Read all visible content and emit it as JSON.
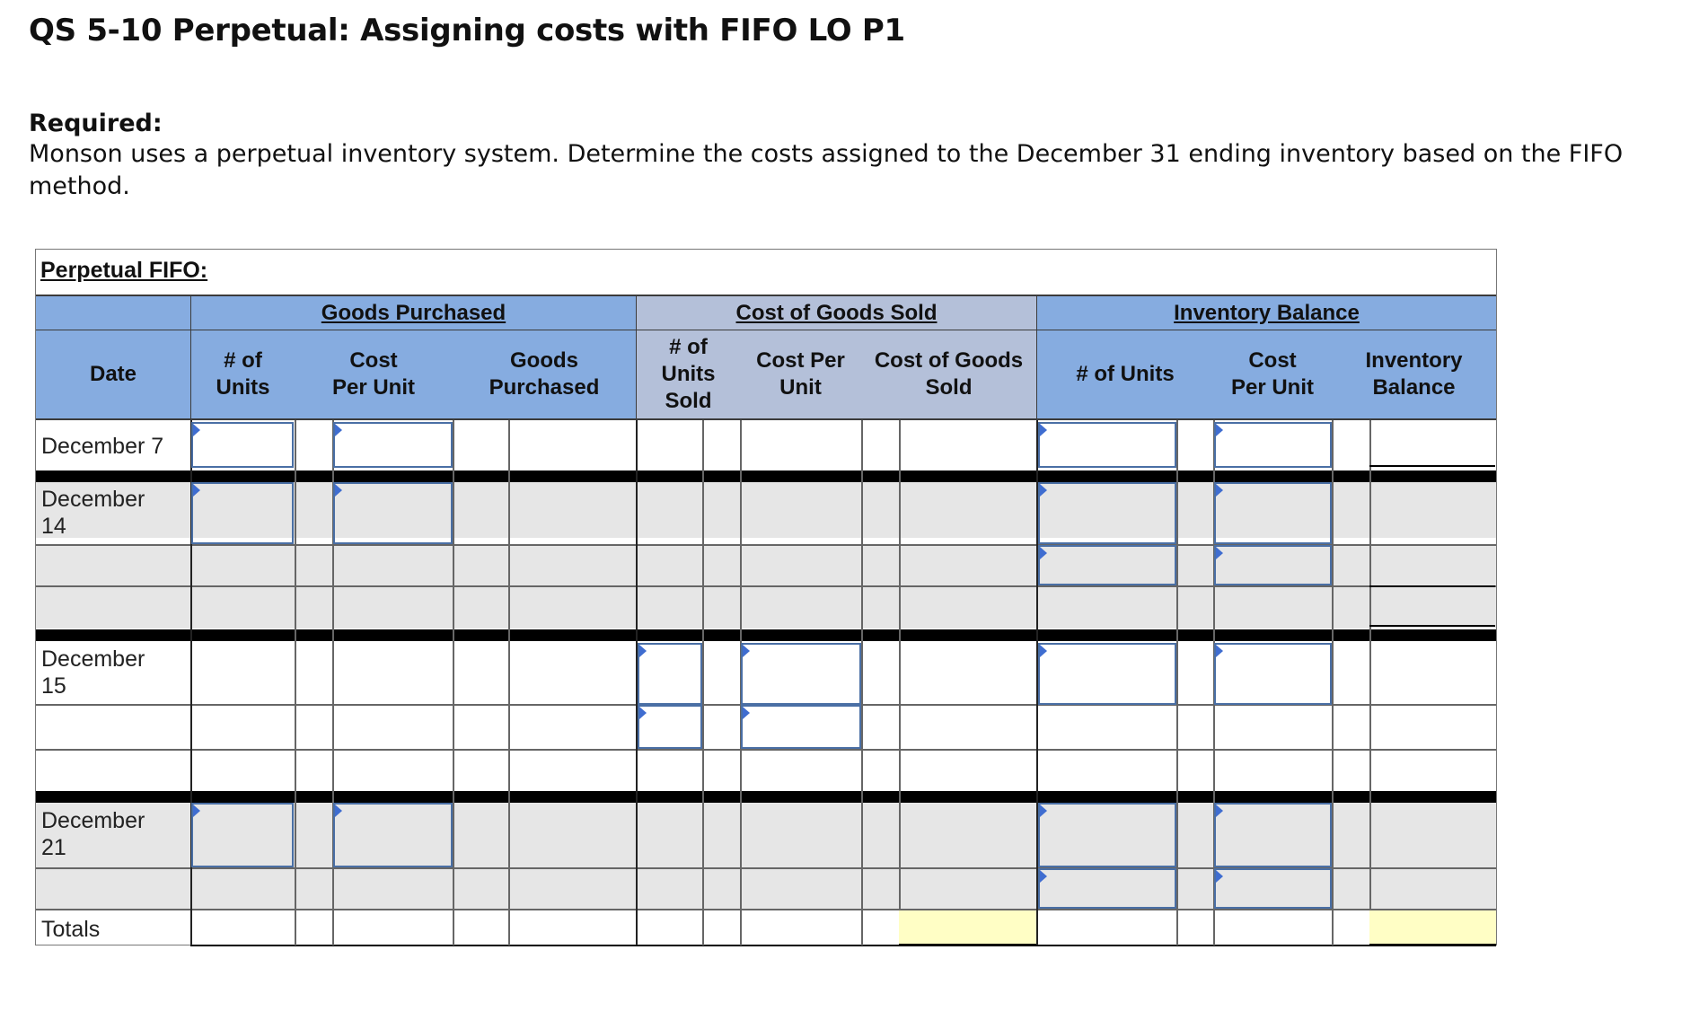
{
  "title": "QS 5-10 Perpetual: Assigning costs with FIFO LO P1",
  "required_heading": "Required:",
  "required_text": "Monson uses a perpetual inventory system. Determine the costs assigned to the December 31 ending inventory based on the FIFO method.",
  "table": {
    "title": "Perpetual FIFO:",
    "groups": {
      "purchased": "Goods Purchased",
      "cogs": "Cost of Goods Sold",
      "inventory": "Inventory Balance"
    },
    "columns": {
      "date": "Date",
      "purch_units": "# of Units",
      "purch_cost": "Cost Per Unit",
      "purch_total": "Goods Purchased",
      "sold_units": "# of Units Sold",
      "sold_cost": "Cost Per Unit",
      "sold_total": "Cost of Goods Sold",
      "inv_units": "# of Units",
      "inv_cost": "Cost Per Unit",
      "inv_total": "Inventory Balance"
    },
    "dates": {
      "dec7": "December 7",
      "dec14": "December 14",
      "dec15": "December 15",
      "dec21": "December 21",
      "totals": "Totals"
    }
  }
}
